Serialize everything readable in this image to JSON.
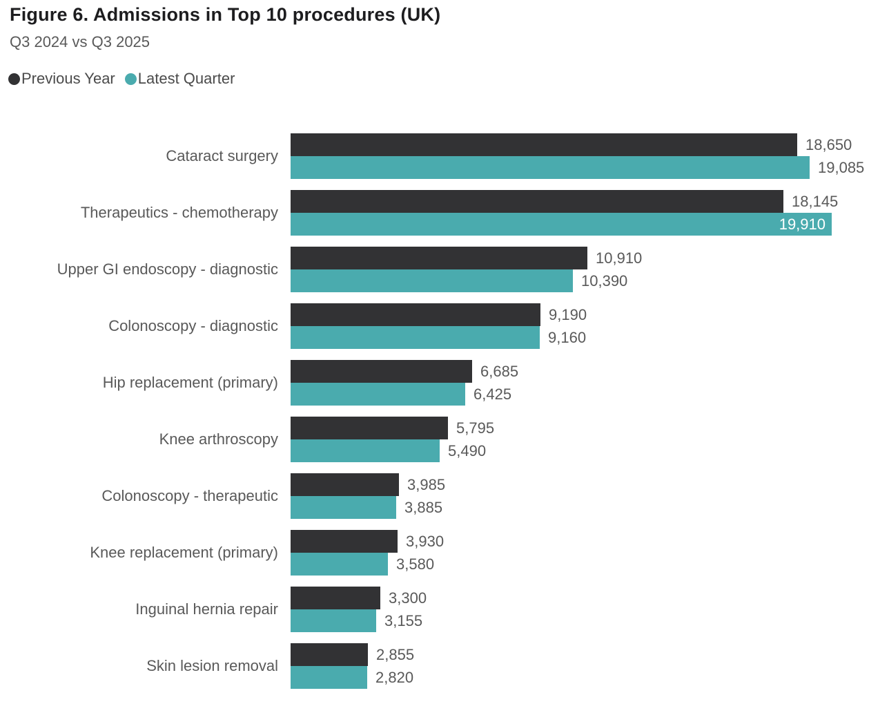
{
  "header": {
    "title": "Figure 6. Admissions in Top 10 procedures (UK)",
    "subtitle": "Q3 2024 vs Q3 2025"
  },
  "legend": {
    "items": [
      {
        "label": "Previous Year",
        "color": "#323234"
      },
      {
        "label": "Latest Quarter",
        "color": "#4aabae"
      }
    ]
  },
  "colors": {
    "previous_year": "#323234",
    "latest_quarter": "#4aabae",
    "title_text": "#1d1d1f",
    "label_text": "#595959",
    "inside_label_text": "#ffffff",
    "background": "#ffffff"
  },
  "chart_data": {
    "type": "bar",
    "orientation": "horizontal",
    "title": "Figure 6. Admissions in Top 10 procedures (UK)",
    "subtitle": "Q3 2024 vs Q3 2025",
    "categories": [
      "Cataract surgery",
      "Therapeutics - chemotherapy",
      "Upper GI endoscopy - diagnostic",
      "Colonoscopy - diagnostic",
      "Hip replacement (primary)",
      "Knee arthroscopy",
      "Colonoscopy - therapeutic",
      "Knee replacement (primary)",
      "Inguinal hernia repair",
      "Skin lesion removal"
    ],
    "series": [
      {
        "name": "Previous Year",
        "color": "#323234",
        "values": [
          18650,
          18145,
          10910,
          9190,
          6685,
          5795,
          3985,
          3930,
          3300,
          2855
        ]
      },
      {
        "name": "Latest Quarter",
        "color": "#4aabae",
        "values": [
          19085,
          19910,
          10390,
          9160,
          6425,
          5490,
          3885,
          3580,
          3155,
          2820
        ]
      }
    ],
    "xlim": [
      0,
      19910
    ],
    "grid": false,
    "axis_lines": false,
    "legend_position": "top-left",
    "value_label_format": "thousands-separated"
  }
}
